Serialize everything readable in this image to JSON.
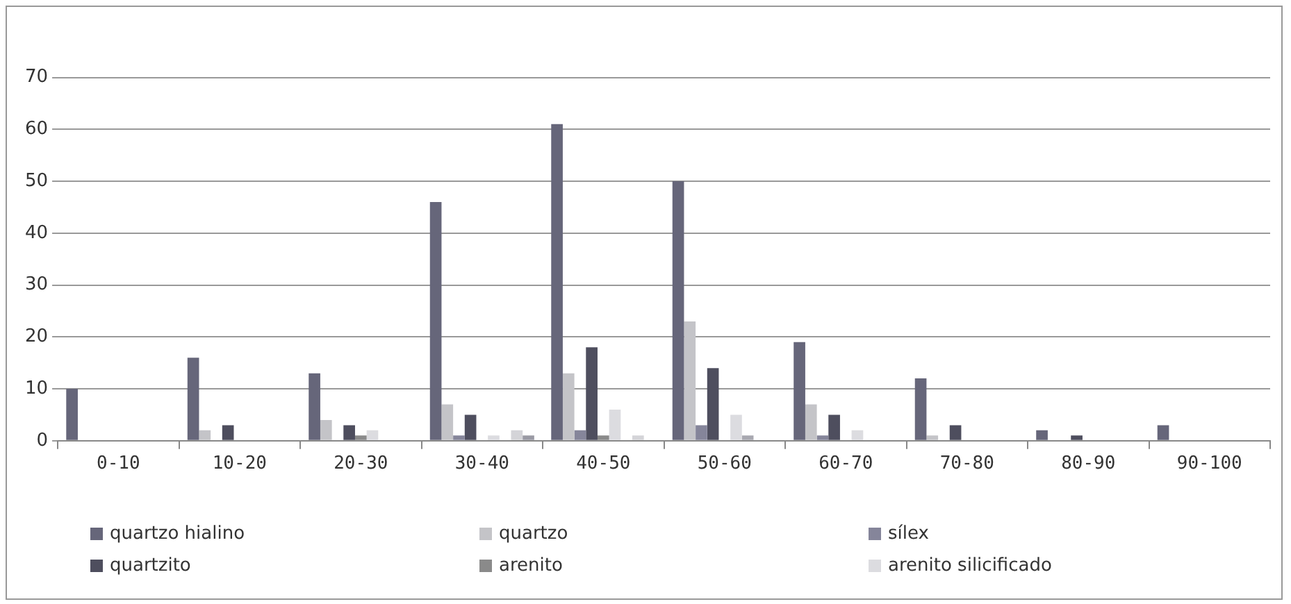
{
  "chart_data": {
    "type": "bar",
    "categories": [
      "0-10",
      "10-20",
      "20-30",
      "30-40",
      "40-50",
      "50-60",
      "60-70",
      "70-80",
      "80-90",
      "90-100"
    ],
    "series": [
      {
        "name": "quartzo hialino",
        "color": "#66667a",
        "values": [
          10,
          16,
          13,
          46,
          61,
          50,
          19,
          12,
          2,
          3
        ]
      },
      {
        "name": "quartzo",
        "color": "#c4c4c8",
        "values": [
          0,
          2,
          4,
          7,
          13,
          23,
          7,
          1,
          0,
          0
        ]
      },
      {
        "name": "sílex",
        "color": "#85859a",
        "values": [
          0,
          0,
          0,
          1,
          2,
          3,
          1,
          0,
          0,
          0
        ]
      },
      {
        "name": "quartzito",
        "color": "#4e4e5e",
        "values": [
          0,
          3,
          3,
          5,
          18,
          14,
          5,
          3,
          1,
          0
        ]
      },
      {
        "name": "arenito",
        "color": "#8a8a8a",
        "values": [
          0,
          0,
          1,
          0,
          1,
          0,
          0,
          0,
          0,
          0
        ]
      },
      {
        "name": "arenito silicificado",
        "color": "#dcdce0",
        "values": [
          0,
          0,
          2,
          1,
          6,
          5,
          2,
          0,
          0,
          0
        ]
      },
      {
        "color": "#a8a8b0",
        "values": [
          0,
          0,
          0,
          0,
          0,
          1,
          0,
          0,
          0,
          0
        ]
      },
      {
        "color": "#d4d4d8",
        "values": [
          0,
          0,
          0,
          2,
          1,
          0,
          0,
          0,
          0,
          0
        ]
      },
      {
        "color": "#9a9aa4",
        "values": [
          0,
          0,
          0,
          1,
          0,
          0,
          0,
          0,
          0,
          0
        ]
      }
    ],
    "ylim": [
      0,
      70
    ],
    "yticks": [
      0,
      10,
      20,
      30,
      40,
      50,
      60,
      70
    ],
    "grid": "y",
    "legend": "bottom"
  }
}
